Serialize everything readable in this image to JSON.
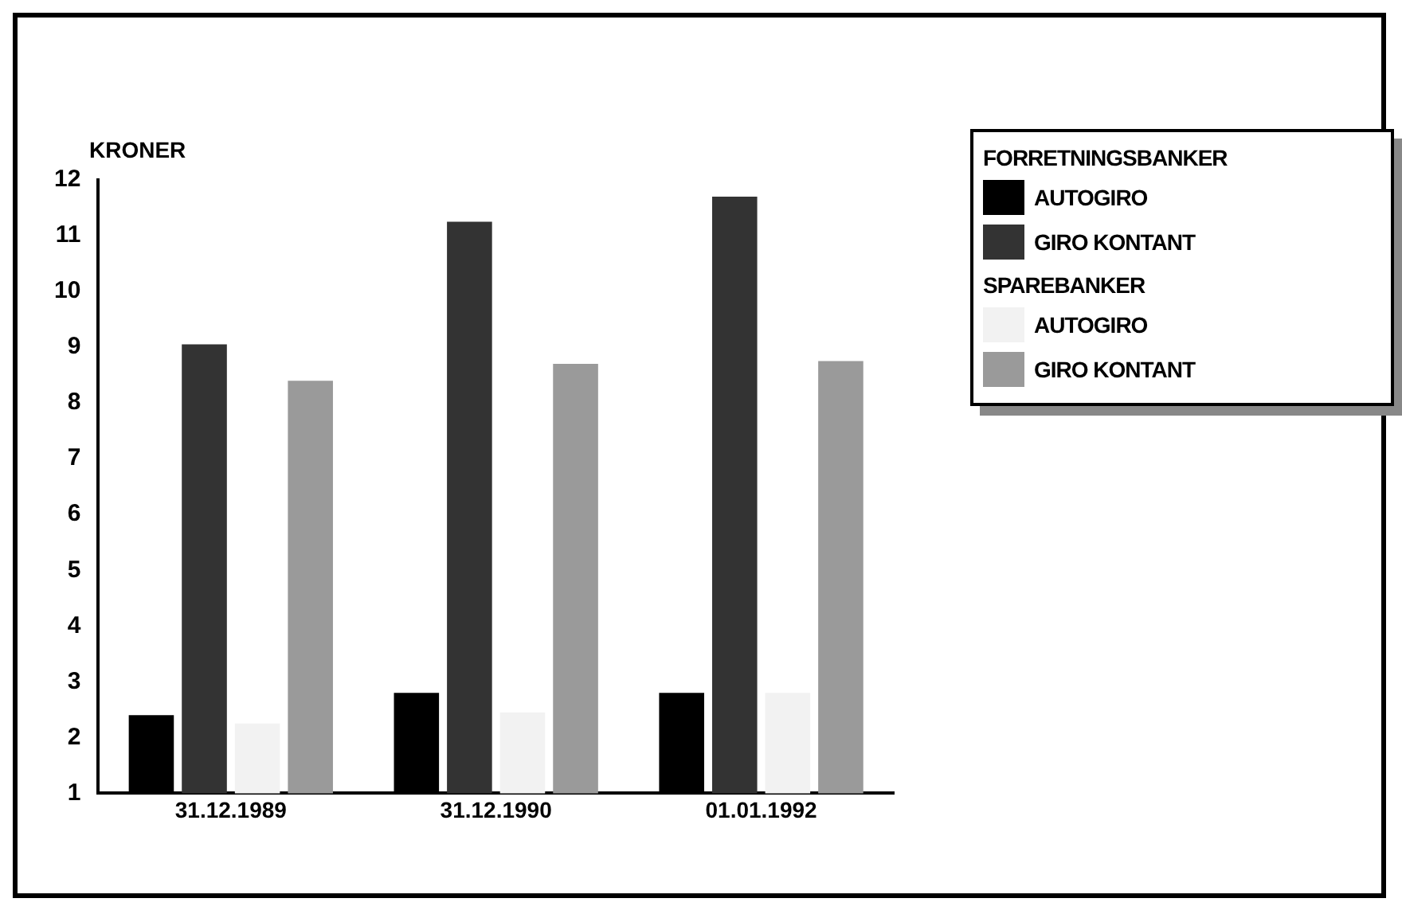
{
  "chart_data": {
    "type": "bar",
    "ylabel": "KRONER",
    "legend_title": "FORRETNINGSBANKER",
    "annotations": [
      "SPAREBANKER"
    ],
    "categories": [
      "31.12.1989",
      "31.12.1990",
      "01.01.1992"
    ],
    "series": [
      {
        "name": "AUTOGIRO",
        "color": "#000000",
        "values": [
          2.4,
          2.8,
          2.8
        ]
      },
      {
        "name": "GIRO KONTANT",
        "color": "#333333",
        "values": [
          9.05,
          11.25,
          11.7
        ]
      },
      {
        "name": "AUTOGIRO",
        "color": "#f2f2f2",
        "values": [
          2.25,
          2.45,
          2.8
        ]
      },
      {
        "name": "GIRO KONTANT",
        "color": "#9a9a9a",
        "values": [
          8.4,
          8.7,
          8.75
        ]
      }
    ],
    "ylim": [
      1,
      12
    ],
    "yticks": [
      1,
      2,
      3,
      4,
      5,
      6,
      7,
      8,
      9,
      10,
      11,
      12
    ],
    "grid": false,
    "legend": "top right"
  }
}
